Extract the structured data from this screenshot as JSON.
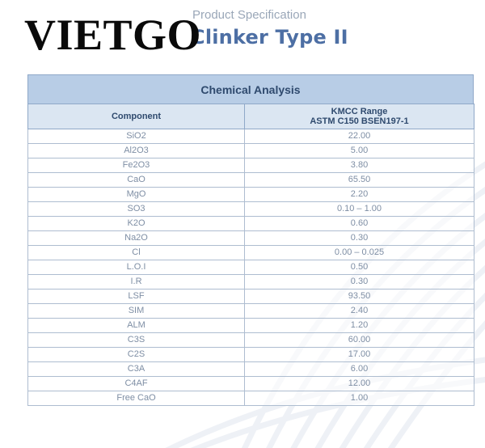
{
  "header": {
    "subtitle": "Product Specification",
    "title": "Clinker Type II",
    "logo_text": "VIETGO"
  },
  "table": {
    "caption": "Chemical Analysis",
    "columns": {
      "component": "Component",
      "range_line1": "KMCC Range",
      "range_line2": "ASTM C150 BSEN197-1"
    },
    "rows": [
      {
        "component": "SiO2",
        "value": "22.00"
      },
      {
        "component": "Al2O3",
        "value": "5.00"
      },
      {
        "component": "Fe2O3",
        "value": "3.80"
      },
      {
        "component": "CaO",
        "value": "65.50"
      },
      {
        "component": "MgO",
        "value": "2.20"
      },
      {
        "component": "SO3",
        "value": "0.10 – 1.00"
      },
      {
        "component": "K2O",
        "value": "0.60"
      },
      {
        "component": "Na2O",
        "value": "0.30"
      },
      {
        "component": "Cl",
        "value": "0.00 – 0.025"
      },
      {
        "component": "L.O.I",
        "value": "0.50"
      },
      {
        "component": "I.R",
        "value": "0.30"
      },
      {
        "component": "LSF",
        "value": "93.50"
      },
      {
        "component": "SIM",
        "value": "2.40"
      },
      {
        "component": "ALM",
        "value": "1.20"
      },
      {
        "component": "C3S",
        "value": "60.00"
      },
      {
        "component": "C2S",
        "value": "17.00"
      },
      {
        "component": "C3A",
        "value": "6.00"
      },
      {
        "component": "C4AF",
        "value": "12.00"
      },
      {
        "component": "Free CaO",
        "value": "1.00"
      }
    ]
  }
}
